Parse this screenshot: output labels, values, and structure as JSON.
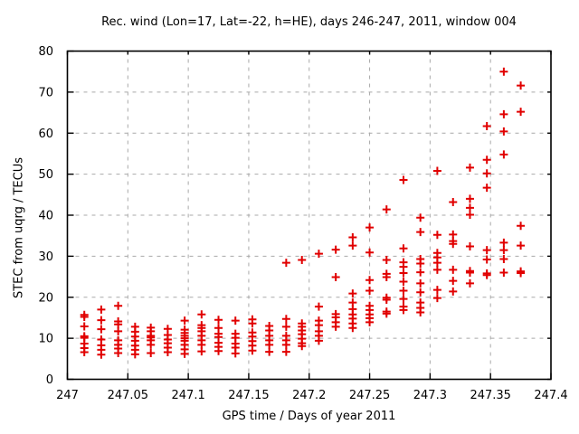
{
  "chart_data": {
    "type": "scatter",
    "title": "Rec. wind (Lon=17, Lat=-22, h=HE), days 246-247, 2011, window 004",
    "xlabel": "GPS time / Days of year 2011",
    "ylabel": "STEC from uqrg / TECUs",
    "xlim": [
      247,
      247.4
    ],
    "ylim": [
      0,
      80
    ],
    "xticks": {
      "values": [
        247,
        247.05,
        247.1,
        247.15,
        247.2,
        247.25,
        247.3,
        247.35,
        247.4
      ],
      "labels": [
        "247",
        "247.05",
        "247.1",
        "247.15",
        "247.2",
        "247.25",
        "247.3",
        "247.35",
        "247.4"
      ]
    },
    "yticks": {
      "values": [
        0,
        10,
        20,
        30,
        40,
        50,
        60,
        70,
        80
      ],
      "labels": [
        "0",
        "10",
        "20",
        "30",
        "40",
        "50",
        "60",
        "70",
        "80"
      ]
    },
    "grid": true,
    "legend": "none",
    "colors": {
      "marker": "#e10000",
      "grid": "#a9a9a9",
      "border": "#000000",
      "background": "#ffffff"
    },
    "marker_shape": "plus",
    "series": [
      {
        "name": "STEC",
        "clusters": [
          {
            "t": 247.014,
            "stec": [
              15.7,
              15.2,
              12.9,
              10.5,
              10.1,
              8.7,
              7.6,
              6.6
            ]
          },
          {
            "t": 247.028,
            "stec": [
              17.0,
              14.4,
              12.2,
              9.7,
              8.3,
              7.2,
              6.0
            ]
          },
          {
            "t": 247.042,
            "stec": [
              17.9,
              14.1,
              13.4,
              11.7,
              9.5,
              8.4,
              7.5,
              6.4
            ]
          },
          {
            "t": 247.056,
            "stec": [
              12.8,
              11.6,
              10.4,
              9.4,
              8.2,
              7.2,
              6.1
            ]
          },
          {
            "t": 247.069,
            "stec": [
              12.6,
              11.7,
              10.6,
              10.2,
              9.5,
              8.4,
              6.4
            ]
          },
          {
            "t": 247.083,
            "stec": [
              12.3,
              10.8,
              9.7,
              8.8,
              7.7,
              6.6
            ]
          },
          {
            "t": 247.097,
            "stec": [
              14.3,
              12.1,
              11.3,
              10.6,
              10.0,
              9.4,
              8.4,
              7.3,
              6.2
            ]
          },
          {
            "t": 247.111,
            "stec": [
              15.8,
              13.2,
              12.5,
              11.7,
              10.6,
              9.5,
              8.4,
              6.8
            ]
          },
          {
            "t": 247.125,
            "stec": [
              14.5,
              12.5,
              11.1,
              10.3,
              8.9,
              7.9,
              6.9
            ]
          },
          {
            "t": 247.139,
            "stec": [
              14.3,
              11.1,
              10.1,
              8.7,
              7.7,
              6.3
            ]
          },
          {
            "t": 247.153,
            "stec": [
              14.6,
              13.6,
              11.4,
              10.4,
              9.3,
              8.2,
              7.0
            ]
          },
          {
            "t": 247.167,
            "stec": [
              13.0,
              11.9,
              10.6,
              9.5,
              8.4,
              6.7
            ]
          },
          {
            "t": 247.181,
            "stec": [
              28.4,
              14.7,
              12.8,
              10.6,
              9.5,
              8.4,
              6.7
            ]
          },
          {
            "t": 247.194,
            "stec": [
              29.1,
              13.6,
              12.8,
              11.9,
              11.0,
              9.9,
              8.8,
              8.1
            ]
          },
          {
            "t": 247.208,
            "stec": [
              30.6,
              17.7,
              14.3,
              13.2,
              11.7,
              10.6,
              9.4
            ]
          },
          {
            "t": 247.222,
            "stec": [
              31.6,
              24.9,
              15.9,
              15.1,
              13.9,
              12.8
            ]
          },
          {
            "t": 247.236,
            "stec": [
              34.6,
              32.6,
              20.9,
              18.7,
              17.1,
              15.8,
              14.8,
              13.6,
              12.5
            ]
          },
          {
            "t": 247.25,
            "stec": [
              37.0,
              30.9,
              24.2,
              21.6,
              17.9,
              16.9,
              15.8,
              14.9,
              13.9
            ]
          },
          {
            "t": 247.264,
            "stec": [
              41.4,
              29.1,
              25.7,
              24.9,
              19.9,
              19.4,
              16.5,
              16.0
            ]
          },
          {
            "t": 247.278,
            "stec": [
              48.6,
              31.9,
              28.5,
              27.4,
              25.9,
              23.8,
              21.6,
              19.6,
              17.7,
              16.9
            ]
          },
          {
            "t": 247.292,
            "stec": [
              39.4,
              35.9,
              29.3,
              28.2,
              26.1,
              23.4,
              21.2,
              18.7,
              17.4,
              16.3
            ]
          },
          {
            "t": 247.306,
            "stec": [
              50.8,
              35.2,
              30.8,
              29.7,
              28.4,
              26.7,
              21.8,
              19.8
            ]
          },
          {
            "t": 247.319,
            "stec": [
              43.2,
              35.3,
              33.7,
              33.0,
              26.7,
              24.0,
              21.4
            ]
          },
          {
            "t": 247.333,
            "stec": [
              51.6,
              44.0,
              41.8,
              40.1,
              32.4,
              26.4,
              26.0,
              23.4
            ]
          },
          {
            "t": 247.347,
            "stec": [
              61.7,
              53.5,
              50.2,
              46.7,
              31.5,
              29.2,
              25.8,
              25.4
            ]
          },
          {
            "t": 247.361,
            "stec": [
              75.0,
              64.6,
              60.4,
              54.8,
              33.3,
              31.5,
              29.3,
              26.0
            ]
          },
          {
            "t": 247.375,
            "stec": [
              71.6,
              65.2,
              37.4,
              32.6,
              26.3,
              25.9
            ]
          }
        ]
      }
    ]
  }
}
